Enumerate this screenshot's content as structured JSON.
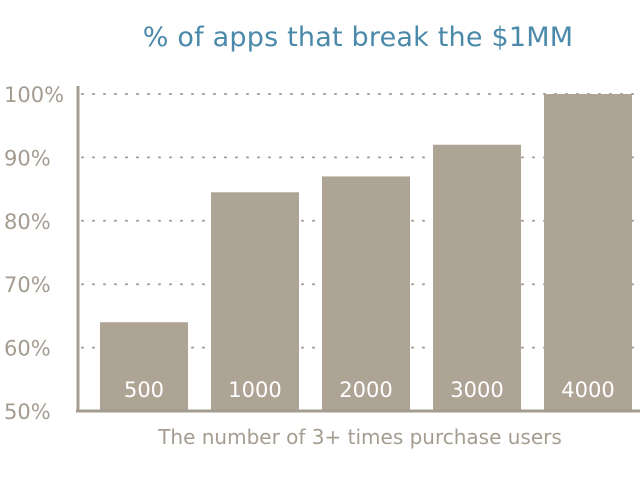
{
  "chart_data": {
    "type": "bar",
    "title": "% of apps that break the $1MM",
    "xlabel": "The number of 3+ times purchase users",
    "ylabel": "",
    "categories": [
      "500",
      "1000",
      "2000",
      "3000",
      "4000"
    ],
    "values": [
      64,
      84.5,
      87,
      92,
      100
    ],
    "ylim": [
      50,
      100
    ],
    "yticks": [
      50,
      60,
      70,
      80,
      90,
      100
    ],
    "ytick_labels": [
      "50%",
      "60%",
      "70%",
      "80%",
      "90%",
      "100%"
    ],
    "grid": true,
    "bar_color": "#aea496",
    "title_color": "#4a89aa",
    "axis_color": "#a59c90"
  }
}
